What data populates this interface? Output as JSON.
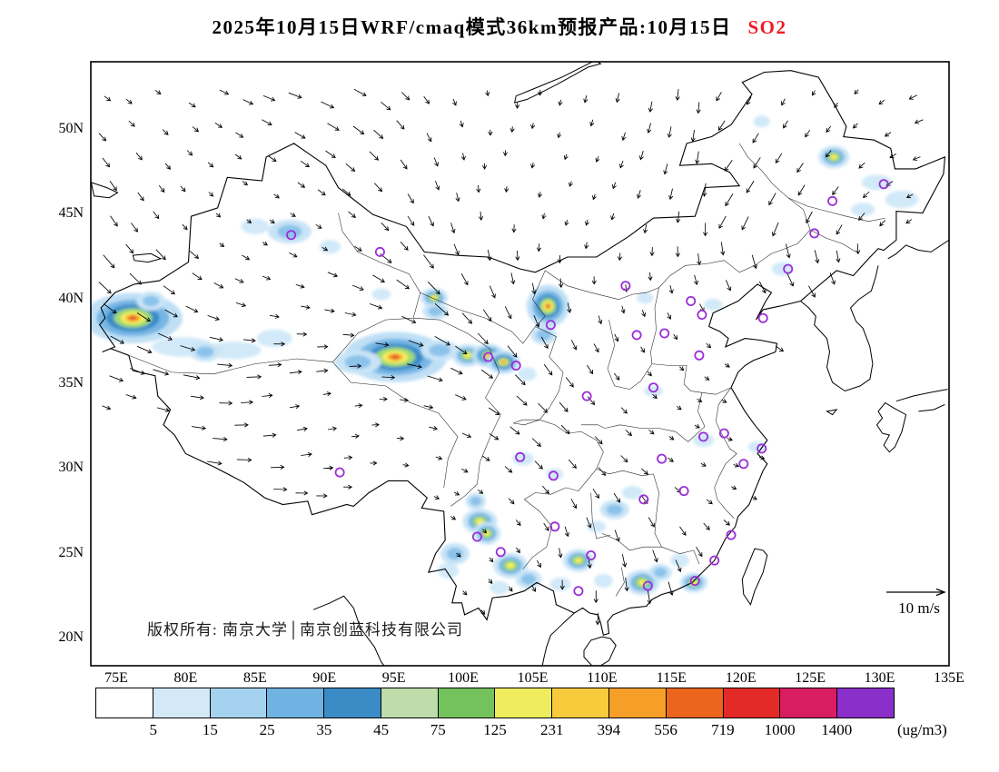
{
  "title": {
    "main": "2025年10月15日WRF/cmaq模式36km预报产品:10月15日",
    "species": "SO2",
    "species_color": "#ee1c25"
  },
  "map": {
    "copyright": "版权所有: 南京大学│南京创蓝科技有限公司",
    "wind_legend": "10 m/s"
  },
  "axis": {
    "lat_labels": [
      "50N",
      "45N",
      "40N",
      "35N",
      "30N",
      "25N",
      "20N"
    ],
    "lon_labels": [
      "75E",
      "80E",
      "85E",
      "90E",
      "95E",
      "100E",
      "105E",
      "110E",
      "115E",
      "120E",
      "125E",
      "130E",
      "135E"
    ]
  },
  "colorbar": {
    "unit": "(ug/m3)",
    "tick_labels": [
      "5",
      "15",
      "25",
      "35",
      "45",
      "75",
      "125",
      "231",
      "394",
      "556",
      "719",
      "1000",
      "1400"
    ],
    "colors": [
      "#ffffff",
      "#d3e9f8",
      "#a5d2ef",
      "#6fb3e2",
      "#3b8cc6",
      "#bfdcab",
      "#74c25c",
      "#efed5e",
      "#f8cb3c",
      "#f59e28",
      "#ec651d",
      "#e32a26",
      "#d81e60",
      "#8a2fc9"
    ]
  },
  "chart_data": {
    "type": "heatmap",
    "title": "2025年10月15日WRF/cmaq模式36km预报产品:10月15日 SO2",
    "variable": "SO2",
    "unit": "ug/m3",
    "lon_range": [
      73.2,
      135.0
    ],
    "lat_range": [
      18.4,
      54.0
    ],
    "lon_ticks": [
      75,
      80,
      85,
      90,
      95,
      100,
      105,
      110,
      115,
      120,
      125,
      130,
      135
    ],
    "lat_ticks": [
      50,
      45,
      40,
      35,
      30,
      25,
      20
    ],
    "levels": [
      5,
      15,
      25,
      35,
      45,
      75,
      125,
      231,
      394,
      556,
      719,
      1000,
      1400
    ],
    "wind_reference_ms": 10,
    "hotspots": [
      [
        76.2,
        38.9,
        2.1,
        1.3,
        "vhigh"
      ],
      [
        79.8,
        37.2,
        2.6,
        1.0,
        "low"
      ],
      [
        83.4,
        37.0,
        2.4,
        0.9,
        "low"
      ],
      [
        86.4,
        37.7,
        1.5,
        0.9,
        "low"
      ],
      [
        81.4,
        36.9,
        1.1,
        0.8,
        "med"
      ],
      [
        77.5,
        39.9,
        1.0,
        0.8,
        "med"
      ],
      [
        87.5,
        44.0,
        1.5,
        1.0,
        "med"
      ],
      [
        85.0,
        44.3,
        1.2,
        0.8,
        "low"
      ],
      [
        90.4,
        43.1,
        0.9,
        0.7,
        "low"
      ],
      [
        95.1,
        36.6,
        2.2,
        1.3,
        "vhigh"
      ],
      [
        92.4,
        36.3,
        1.6,
        1.0,
        "med"
      ],
      [
        98.3,
        37.0,
        1.3,
        0.9,
        "med"
      ],
      [
        100.3,
        36.7,
        0.9,
        0.8,
        "high"
      ],
      [
        101.8,
        36.7,
        0.7,
        0.6,
        "vhigh"
      ],
      [
        102.9,
        36.3,
        0.7,
        0.6,
        "vhigh"
      ],
      [
        104.6,
        35.6,
        0.8,
        0.7,
        "low"
      ],
      [
        106.1,
        39.6,
        0.9,
        1.1,
        "vhigh"
      ],
      [
        105.8,
        37.9,
        0.9,
        0.8,
        "med"
      ],
      [
        97.9,
        40.1,
        0.8,
        0.7,
        "high"
      ],
      [
        94.1,
        40.3,
        0.8,
        0.6,
        "low"
      ],
      [
        98.0,
        39.3,
        0.9,
        0.7,
        "med"
      ],
      [
        126.7,
        48.4,
        0.9,
        0.8,
        "high"
      ],
      [
        129.8,
        46.9,
        1.3,
        0.8,
        "low"
      ],
      [
        131.6,
        45.9,
        1.4,
        0.9,
        "low"
      ],
      [
        128.8,
        45.3,
        1.0,
        0.7,
        "low"
      ],
      [
        121.5,
        50.5,
        0.7,
        0.6,
        "low"
      ],
      [
        101.2,
        26.9,
        1.0,
        0.9,
        "high"
      ],
      [
        101.7,
        26.2,
        0.8,
        0.8,
        "high"
      ],
      [
        100.9,
        28.1,
        0.7,
        0.7,
        "med"
      ],
      [
        99.4,
        25.0,
        1.0,
        0.9,
        "med"
      ],
      [
        98.9,
        24.0,
        0.9,
        0.8,
        "low"
      ],
      [
        103.4,
        24.3,
        1.0,
        0.9,
        "high"
      ],
      [
        104.7,
        23.5,
        0.9,
        0.8,
        "med"
      ],
      [
        102.6,
        23.0,
        0.8,
        0.7,
        "low"
      ],
      [
        108.3,
        24.6,
        0.9,
        0.8,
        "high"
      ],
      [
        107.0,
        23.2,
        0.9,
        0.7,
        "low"
      ],
      [
        110.1,
        23.4,
        0.8,
        0.7,
        "low"
      ],
      [
        112.9,
        23.3,
        1.0,
        0.9,
        "high"
      ],
      [
        114.2,
        23.9,
        0.8,
        0.7,
        "med"
      ],
      [
        116.6,
        23.3,
        0.8,
        0.7,
        "high"
      ],
      [
        115.6,
        24.6,
        0.8,
        0.7,
        "low"
      ],
      [
        110.9,
        27.6,
        1.0,
        0.8,
        "med"
      ],
      [
        112.2,
        28.6,
        0.9,
        0.7,
        "low"
      ],
      [
        109.6,
        26.6,
        0.8,
        0.6,
        "low"
      ],
      [
        117.3,
        31.7,
        0.9,
        0.7,
        "low"
      ],
      [
        113.7,
        34.6,
        0.8,
        0.6,
        "low"
      ],
      [
        121.2,
        31.3,
        0.8,
        0.6,
        "low"
      ],
      [
        104.3,
        30.6,
        0.9,
        0.7,
        "low"
      ],
      [
        106.6,
        29.7,
        0.7,
        0.6,
        "low"
      ],
      [
        118.0,
        39.7,
        0.8,
        0.6,
        "low"
      ],
      [
        123.0,
        41.8,
        0.9,
        0.7,
        "low"
      ],
      [
        113.1,
        40.1,
        0.7,
        0.6,
        "low"
      ]
    ],
    "stations": [
      [
        126.6,
        45.8
      ],
      [
        130.3,
        46.8
      ],
      [
        125.3,
        43.9
      ],
      [
        123.4,
        41.8
      ],
      [
        94.0,
        42.8
      ],
      [
        87.6,
        43.8
      ],
      [
        111.7,
        40.8
      ],
      [
        116.4,
        39.9
      ],
      [
        117.2,
        39.1
      ],
      [
        114.5,
        38.0
      ],
      [
        112.5,
        37.9
      ],
      [
        117.0,
        36.7
      ],
      [
        106.3,
        38.5
      ],
      [
        101.8,
        36.6
      ],
      [
        103.8,
        36.1
      ],
      [
        108.9,
        34.3
      ],
      [
        113.7,
        34.8
      ],
      [
        117.3,
        31.9
      ],
      [
        118.8,
        32.1
      ],
      [
        121.5,
        31.2
      ],
      [
        120.2,
        30.3
      ],
      [
        114.3,
        30.6
      ],
      [
        104.1,
        30.7
      ],
      [
        106.5,
        29.6
      ],
      [
        91.1,
        29.8
      ],
      [
        113.0,
        28.2
      ],
      [
        115.9,
        28.7
      ],
      [
        106.6,
        26.6
      ],
      [
        119.3,
        26.1
      ],
      [
        118.1,
        24.6
      ],
      [
        102.7,
        25.1
      ],
      [
        101.0,
        26.0
      ],
      [
        108.3,
        22.8
      ],
      [
        109.2,
        24.9
      ],
      [
        113.3,
        23.1
      ],
      [
        116.7,
        23.4
      ],
      [
        121.6,
        38.9
      ]
    ]
  }
}
